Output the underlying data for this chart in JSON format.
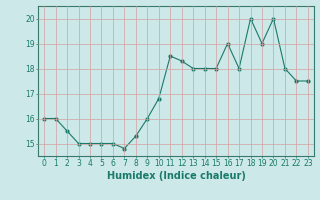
{
  "x": [
    0,
    1,
    2,
    3,
    4,
    5,
    6,
    7,
    8,
    9,
    10,
    11,
    12,
    13,
    14,
    15,
    16,
    17,
    18,
    19,
    20,
    21,
    22,
    23
  ],
  "y": [
    16.0,
    16.0,
    15.5,
    15.0,
    15.0,
    15.0,
    15.0,
    14.8,
    15.3,
    16.0,
    16.8,
    18.5,
    18.3,
    18.0,
    18.0,
    18.0,
    19.0,
    18.0,
    20.0,
    19.0,
    20.0,
    18.0,
    17.5,
    17.5
  ],
  "line_color": "#1a7a6a",
  "marker": "o",
  "markersize": 2,
  "linewidth": 0.8,
  "xlabel": "Humidex (Indice chaleur)",
  "xlabel_fontsize": 7,
  "ylim": [
    14.5,
    20.5
  ],
  "xlim": [
    -0.5,
    23.5
  ],
  "yticks": [
    15,
    16,
    17,
    18,
    19,
    20
  ],
  "xticks": [
    0,
    1,
    2,
    3,
    4,
    5,
    6,
    7,
    8,
    9,
    10,
    11,
    12,
    13,
    14,
    15,
    16,
    17,
    18,
    19,
    20,
    21,
    22,
    23
  ],
  "bg_color": "#cce8e8",
  "grid_color": "#d4a0a0",
  "grid_linewidth": 0.5,
  "tick_fontsize": 5.5,
  "spine_color": "#3a7a6a"
}
